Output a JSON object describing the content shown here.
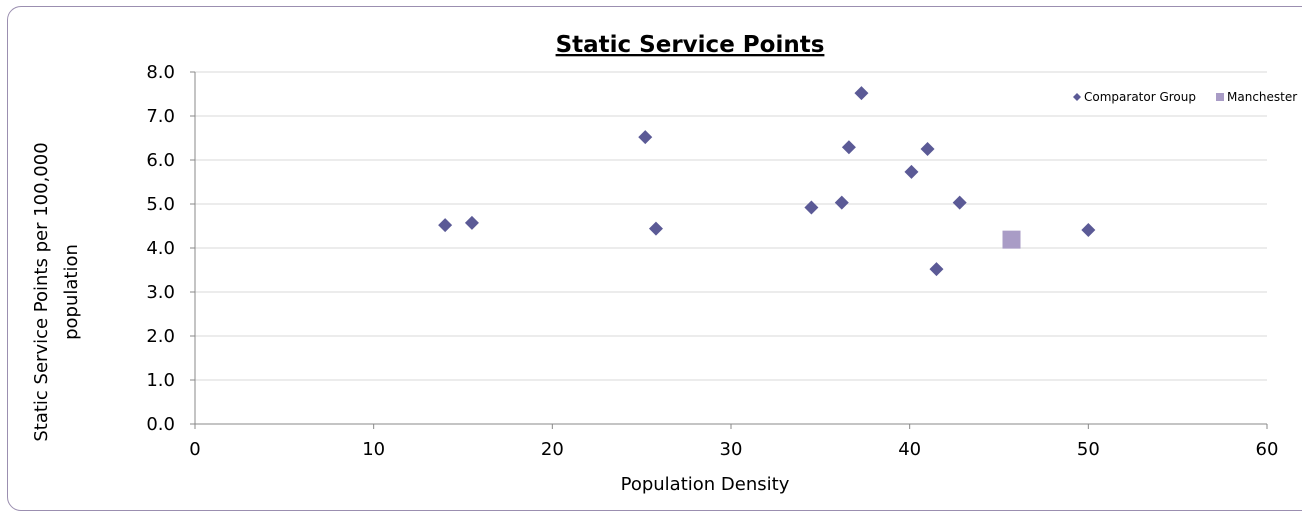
{
  "chart_data": {
    "type": "scatter",
    "title": "Static Service Points",
    "xlabel": "Population Density",
    "ylabel_lines": [
      "Static Service Points per 100,000",
      "population"
    ],
    "xlim": [
      0,
      60
    ],
    "ylim": [
      0,
      8
    ],
    "x_ticks": [
      "0",
      "10",
      "20",
      "30",
      "40",
      "50",
      "60"
    ],
    "y_ticks": [
      "0.0",
      "1.0",
      "2.0",
      "3.0",
      "4.0",
      "5.0",
      "6.0",
      "7.0",
      "8.0"
    ],
    "grid": "horizontal",
    "legend_position": "top-right",
    "series": [
      {
        "name": "Comparator Group",
        "marker": "diamond",
        "color": "#5b5a96",
        "points": [
          {
            "x": 14.0,
            "y": 4.52
          },
          {
            "x": 15.5,
            "y": 4.57
          },
          {
            "x": 25.2,
            "y": 6.52
          },
          {
            "x": 25.8,
            "y": 4.44
          },
          {
            "x": 34.5,
            "y": 4.92
          },
          {
            "x": 36.2,
            "y": 5.03
          },
          {
            "x": 36.6,
            "y": 6.29
          },
          {
            "x": 37.3,
            "y": 7.52
          },
          {
            "x": 40.1,
            "y": 5.73
          },
          {
            "x": 41.0,
            "y": 6.25
          },
          {
            "x": 41.5,
            "y": 3.52
          },
          {
            "x": 42.8,
            "y": 5.03
          },
          {
            "x": 50.0,
            "y": 4.41
          }
        ]
      },
      {
        "name": "Manchester",
        "marker": "square",
        "color": "#a99cc6",
        "points": [
          {
            "x": 45.7,
            "y": 4.19
          }
        ]
      }
    ]
  }
}
